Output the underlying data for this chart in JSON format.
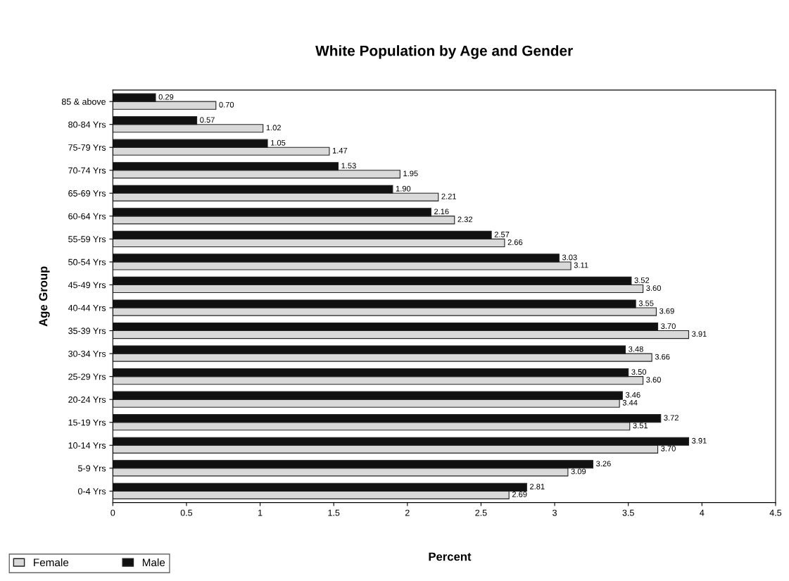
{
  "chart_data": {
    "type": "bar",
    "orientation": "horizontal",
    "title": "White Population by Age and Gender",
    "xlabel": "Percent",
    "ylabel": "Age Group",
    "categories": [
      "85 & above",
      "80-84 Yrs",
      "75-79 Yrs",
      "70-74 Yrs",
      "65-69 Yrs",
      "60-64 Yrs",
      "55-59 Yrs",
      "50-54 Yrs",
      "45-49 Yrs",
      "40-44 Yrs",
      "35-39 Yrs",
      "30-34 Yrs",
      "25-29 Yrs",
      "20-24 Yrs",
      "15-19 Yrs",
      "10-14 Yrs",
      "5-9 Yrs",
      "0-4 Yrs"
    ],
    "series": [
      {
        "name": "Female",
        "color": "#d9d9d9",
        "values": [
          0.7,
          1.02,
          1.47,
          1.95,
          2.21,
          2.32,
          2.66,
          3.11,
          3.6,
          3.69,
          3.91,
          3.66,
          3.6,
          3.44,
          3.51,
          3.7,
          3.09,
          2.69
        ],
        "value_labels": [
          "0.70",
          "1.02",
          "1.47",
          "1.95",
          "2.21",
          "2.32",
          "2.66",
          "3.11",
          "3.60",
          "3.69",
          "3.91",
          "3.66",
          "3.60",
          "3.44",
          "3.51",
          "3.70",
          "3.09",
          "2.69"
        ]
      },
      {
        "name": "Male",
        "color": "#111111",
        "values": [
          0.29,
          0.57,
          1.05,
          1.53,
          1.9,
          2.16,
          2.57,
          3.03,
          3.52,
          3.55,
          3.7,
          3.48,
          3.5,
          3.46,
          3.72,
          3.91,
          3.26,
          2.81
        ],
        "value_labels": [
          "0.29",
          "0.57",
          "1.05",
          "1.53",
          "1.90",
          "2.16",
          "2.57",
          "3.03",
          "3.52",
          "3.55",
          "3.70",
          "3.48",
          "3.50",
          "3.46",
          "3.72",
          "3.91",
          "3.26",
          "2.81"
        ]
      }
    ],
    "xlim": [
      0,
      4.5
    ],
    "xticks": [
      0,
      0.5,
      1,
      1.5,
      2,
      2.5,
      3,
      3.5,
      4,
      4.5
    ],
    "grid": false,
    "legend": "bottom left"
  }
}
